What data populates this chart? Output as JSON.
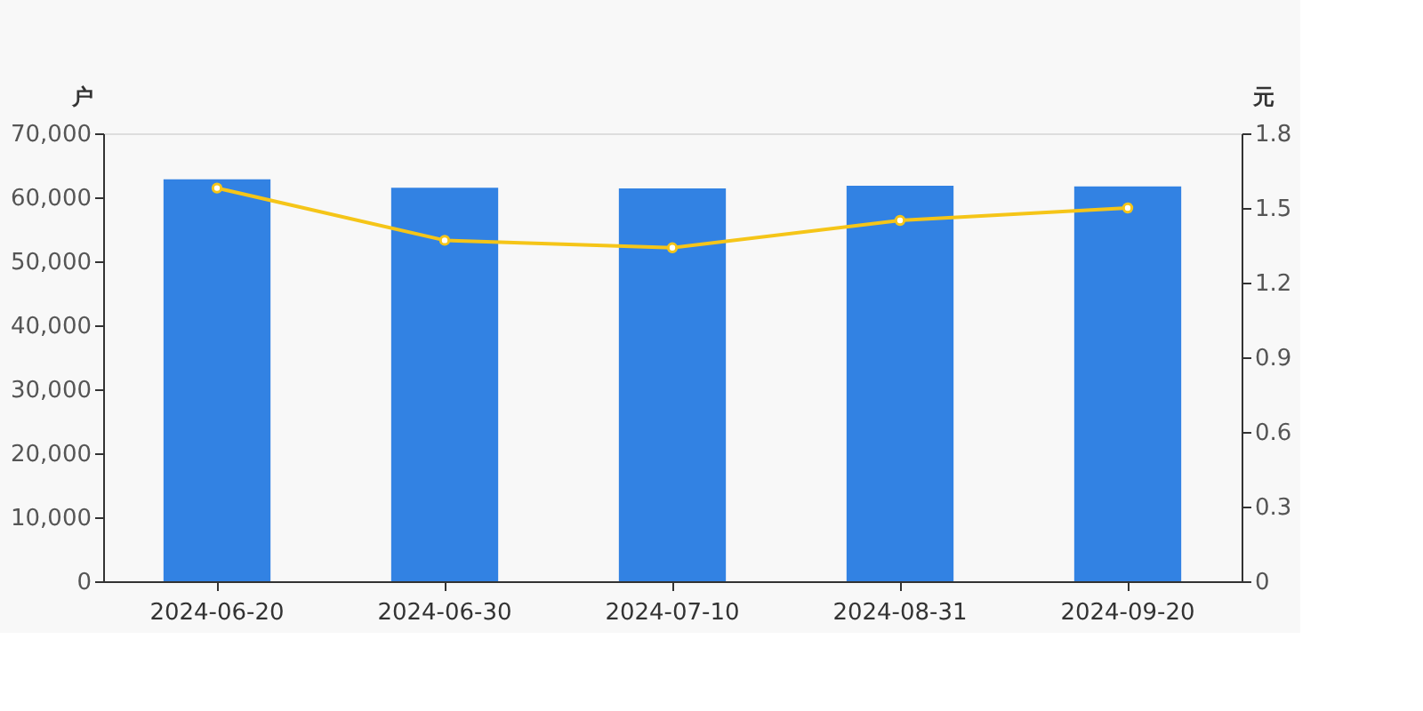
{
  "chart_data": {
    "type": "bar",
    "ylabel": "户",
    "y2label": "元",
    "categories": [
      "2024-06-20",
      "2024-06-30",
      "2024-07-10",
      "2024-08-31",
      "2024-09-20"
    ],
    "series": [
      {
        "color": "#3282e3",
        "values": [
          62800,
          61500,
          61400,
          61800,
          61700
        ]
      },
      {
        "type": "line",
        "axis": "y2",
        "color": "#f5c518",
        "marker": "circle",
        "values": [
          1.58,
          1.37,
          1.34,
          1.45,
          1.5
        ]
      }
    ],
    "ylim": [
      0,
      70000
    ],
    "yticks": [
      0,
      {
        "value": 10000,
        "label": "10,000"
      },
      {
        "value": 20000,
        "label": "20,000"
      },
      {
        "value": 30000,
        "label": "30,000"
      },
      {
        "value": 40000,
        "label": "40,000"
      },
      {
        "value": 50000,
        "label": "50,000"
      },
      {
        "value": 60000,
        "label": "60,000"
      },
      {
        "value": 70000,
        "label": "70,000"
      }
    ],
    "y2lim": [
      0,
      1.8
    ],
    "y2ticks": [
      0,
      0.3,
      0.6,
      0.9,
      1.2,
      1.5,
      1.8
    ],
    "grid": false
  }
}
